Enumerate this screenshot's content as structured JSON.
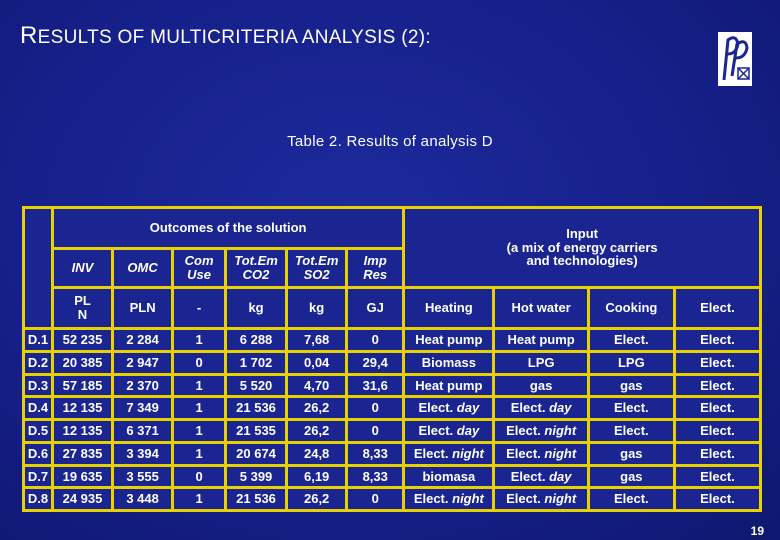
{
  "slide": {
    "title_first": "R",
    "title_rest": "ESULTS OF MULTICRITERIA ANALYSIS (2):",
    "caption": "Table 2.  Results of analysis D",
    "page_number": "19"
  },
  "table": {
    "outcomes_header": "Outcomes of the solution",
    "input_header_line1": "Input",
    "input_header_line2": "(a mix of energy carriers",
    "input_header_line3": "and technologies)",
    "criteria": [
      {
        "l1": "INV",
        "l2": "",
        "unit": "PLN",
        "unit_l1": "PL",
        "unit_l2": "N"
      },
      {
        "l1": "OMC",
        "l2": "",
        "unit": "PLN"
      },
      {
        "l1": "Com",
        "l2": "Use",
        "unit": "-"
      },
      {
        "l1": "Tot.Em",
        "l2": "CO2",
        "unit": "kg"
      },
      {
        "l1": "Tot.Em",
        "l2": "SO2",
        "unit": "kg"
      },
      {
        "l1": "Imp",
        "l2": "Res",
        "unit": "GJ"
      }
    ],
    "input_columns": [
      "Heating",
      "Hot water",
      "Cooking",
      "Elect."
    ],
    "rows": [
      {
        "id": "D.1",
        "inv": "52 235",
        "omc": "2 284",
        "com": "1",
        "co2": "6 288",
        "so2": "7,68",
        "imp": "0",
        "heat": [
          "Heat pump",
          ""
        ],
        "water": [
          "Heat pump",
          ""
        ],
        "cook": "Elect.",
        "elect": "Elect."
      },
      {
        "id": "D.2",
        "inv": "20 385",
        "omc": "2 947",
        "com": "0",
        "co2": "1 702",
        "so2": "0,04",
        "imp": "29,4",
        "heat": [
          "Biomass",
          ""
        ],
        "water": [
          "LPG",
          ""
        ],
        "cook": "LPG",
        "elect": "Elect."
      },
      {
        "id": "D.3",
        "inv": "57 185",
        "omc": "2 370",
        "com": "1",
        "co2": "5 520",
        "so2": "4,70",
        "imp": "31,6",
        "heat": [
          "Heat pump",
          ""
        ],
        "water": [
          "gas",
          ""
        ],
        "cook": "gas",
        "elect": "Elect."
      },
      {
        "id": "D.4",
        "inv": "12 135",
        "omc": "7 349",
        "com": "1",
        "co2": "21 536",
        "so2": "26,2",
        "imp": "0",
        "heat": [
          "Elect.",
          "day"
        ],
        "water": [
          "Elect.",
          "day"
        ],
        "cook": "Elect.",
        "elect": "Elect."
      },
      {
        "id": "D.5",
        "inv": "12 135",
        "omc": "6 371",
        "com": "1",
        "co2": "21 535",
        "so2": "26,2",
        "imp": "0",
        "heat": [
          "Elect.",
          "day"
        ],
        "water": [
          "Elect.",
          "night"
        ],
        "cook": "Elect.",
        "elect": "Elect."
      },
      {
        "id": "D.6",
        "inv": "27 835",
        "omc": "3 394",
        "com": "1",
        "co2": "20 674",
        "so2": "24,8",
        "imp": "8,33",
        "heat": [
          "Elect.",
          "night"
        ],
        "water": [
          "Elect.",
          "night"
        ],
        "cook": "gas",
        "elect": "Elect."
      },
      {
        "id": "D.7",
        "inv": "19 635",
        "omc": "3 555",
        "com": "0",
        "co2": "5 399",
        "so2": "6,19",
        "imp": "8,33",
        "heat": [
          "biomasa",
          ""
        ],
        "water": [
          "Elect.",
          "day"
        ],
        "cook": "gas",
        "elect": "Elect."
      },
      {
        "id": "D.8",
        "inv": "24 935",
        "omc": "3 448",
        "com": "1",
        "co2": "21 536",
        "so2": "26,2",
        "imp": "0",
        "heat": [
          "Elect.",
          "night"
        ],
        "water": [
          "Elect.",
          "night"
        ],
        "cook": "Elect.",
        "elect": "Elect."
      }
    ]
  }
}
